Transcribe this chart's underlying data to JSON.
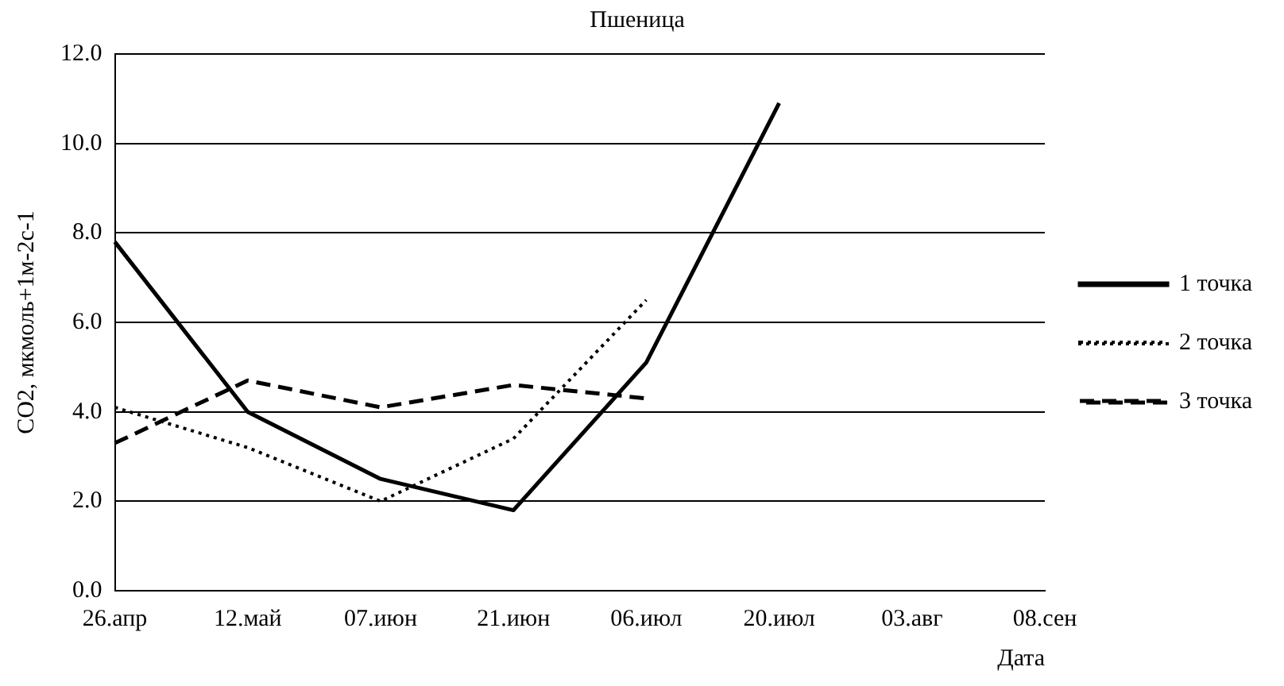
{
  "chart_data": {
    "type": "line",
    "title": "Пшеница",
    "xlabel": "Дата",
    "ylabel": "CO2, мкмоль+1м-2с-1",
    "categories": [
      "26.апр",
      "12.май",
      "07.июн",
      "21.июн",
      "06.июл",
      "20.июл",
      "03.авг",
      "08.сен"
    ],
    "series": [
      {
        "name": "1 точка",
        "color": "#000000",
        "line_style": "solid",
        "values": [
          7.8,
          4.0,
          2.5,
          1.8,
          5.1,
          10.9,
          null,
          null
        ]
      },
      {
        "name": "2 точка",
        "color": "#000000",
        "line_style": "dotted",
        "values": [
          4.1,
          3.2,
          2.0,
          3.4,
          6.5,
          null,
          null,
          null
        ]
      },
      {
        "name": "3 точка",
        "color": "#000000",
        "line_style": "dashed",
        "values": [
          3.3,
          4.7,
          4.1,
          4.6,
          4.3,
          null,
          null,
          null
        ]
      }
    ],
    "ylim": [
      0,
      12
    ],
    "yticks": [
      {
        "value": 0,
        "label": "0.0"
      },
      {
        "value": 2,
        "label": "2.0"
      },
      {
        "value": 4,
        "label": "4.0"
      },
      {
        "value": 6,
        "label": "6.0"
      },
      {
        "value": 8,
        "label": "8.0"
      },
      {
        "value": 10,
        "label": "10.0"
      },
      {
        "value": 12,
        "label": "12.0"
      }
    ],
    "grid": "y",
    "legend": "right",
    "marker": "none"
  }
}
